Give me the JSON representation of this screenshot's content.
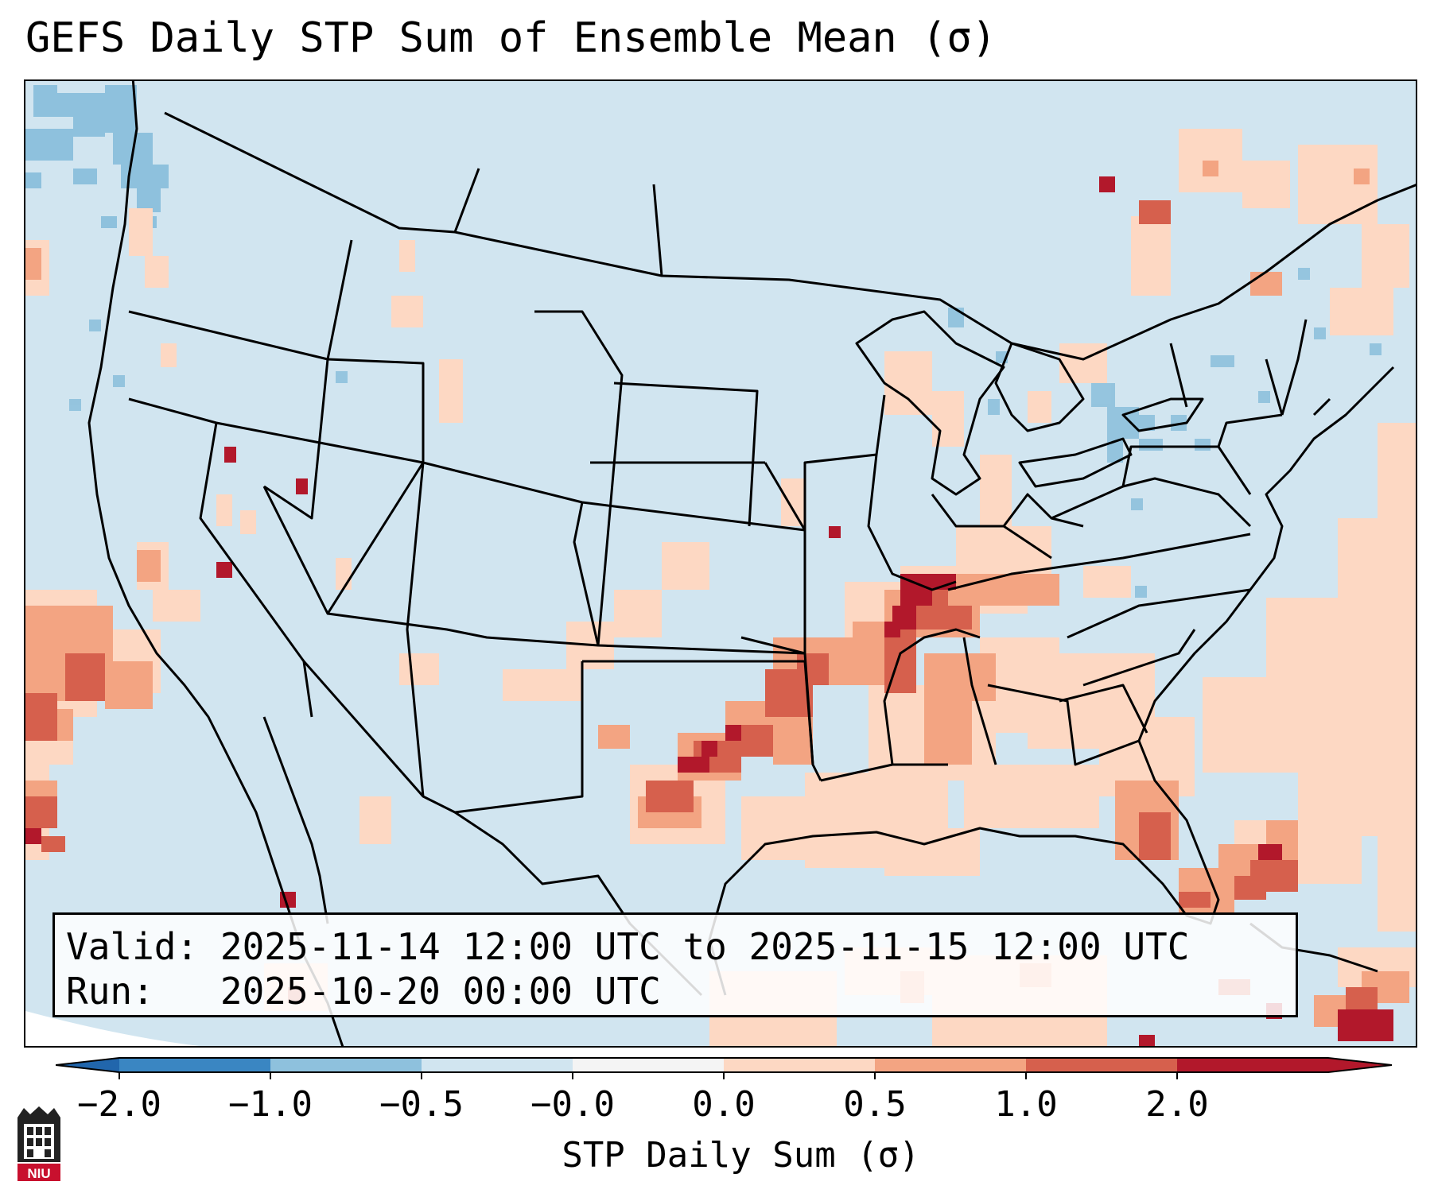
{
  "title": "GEFS Daily STP Sum of Ensemble Mean (σ)",
  "info": {
    "valid_label": "Valid:",
    "valid_value": "2025-11-14 12:00 UTC to 2025-11-15 12:00 UTC",
    "run_label": "Run:",
    "run_value": "2025-10-20 00:00 UTC"
  },
  "colorbar": {
    "label": "STP Daily Sum (σ)",
    "ticks": [
      "−2.0",
      "−1.0",
      "−0.5",
      "−0.0",
      "0.0",
      "0.5",
      "1.0",
      "2.0"
    ],
    "bin_colors": [
      "#3a86c2",
      "#8ec1dd",
      "#d1e5f0",
      "#f4f4f4",
      "#fdd8c3",
      "#f3a482",
      "#d6604d",
      "#b2182b"
    ],
    "extend_min_color": "#2166ac",
    "extend_max_color": "#b2182b"
  },
  "map": {
    "background_color": "#d1e5f0",
    "region": "Continental United States, southern Canada, northern Mexico, Gulf of Mexico, western Atlantic",
    "highlights": [
      {
        "area": "Lower Mississippi Valley / Tennessee Valley",
        "value_sigma": 1.5
      },
      {
        "area": "Arkansas / Louisiana / Mississippi",
        "value_sigma": 0.8
      },
      {
        "area": "Texas (north-central)",
        "value_sigma": 1.2
      },
      {
        "area": "Florida peninsula",
        "value_sigma": 0.9
      },
      {
        "area": "Western Atlantic near Bahamas",
        "value_sigma": 1.1
      },
      {
        "area": "Eastern Pacific off Baja California",
        "value_sigma": 0.9
      },
      {
        "area": "Pacific Northwest coast",
        "value_sigma": 0.4
      },
      {
        "area": "Great Lakes / New York",
        "value_sigma": -0.6
      },
      {
        "area": "Gulf of Alaska / British Columbia coast",
        "value_sigma": -0.7
      }
    ]
  },
  "logo_text": "NIU"
}
